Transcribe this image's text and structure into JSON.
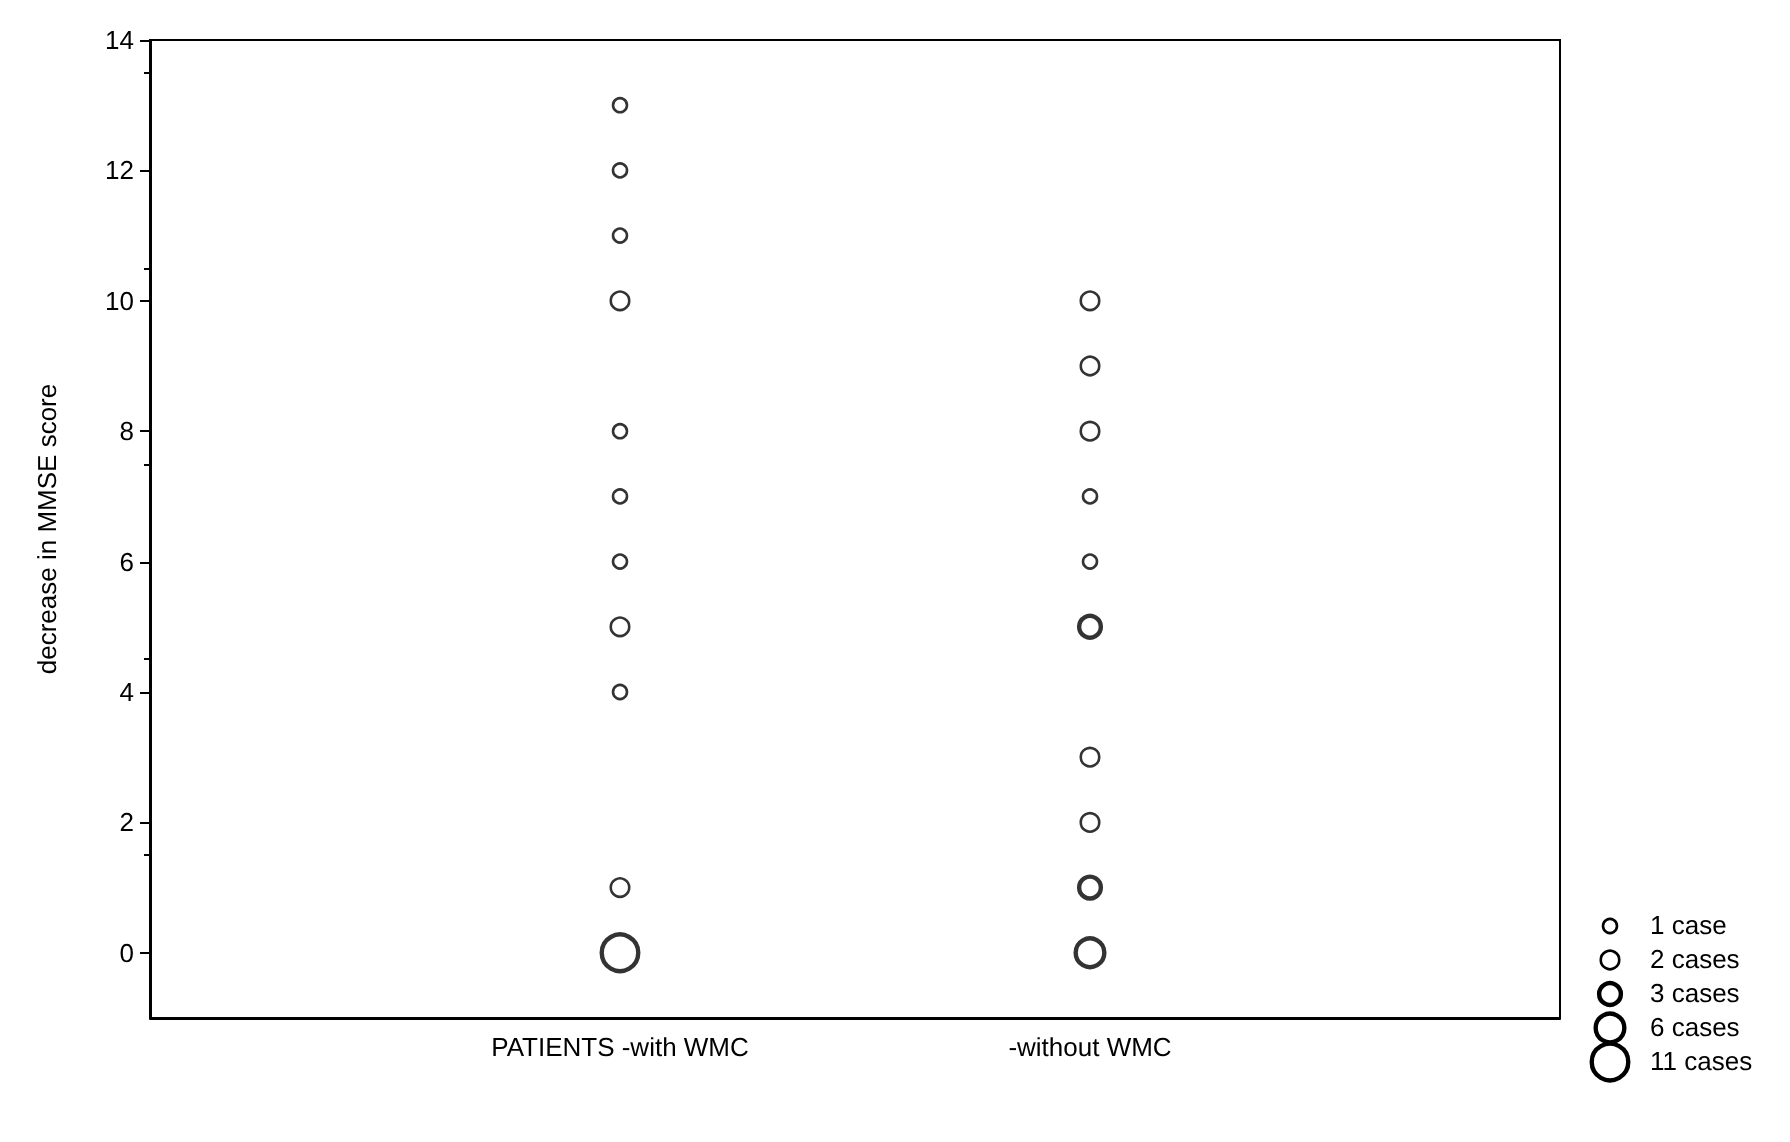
{
  "chart_data": {
    "type": "bubble",
    "ylabel": "decrease in MMSE score",
    "categories": [
      "PATIENTS -with WMC",
      "-without WMC"
    ],
    "series": [
      {
        "color": "#000000",
        "x": [
          "PATIENTS -with WMC",
          "PATIENTS -with WMC",
          "PATIENTS -with WMC",
          "PATIENTS -with WMC",
          "PATIENTS -with WMC",
          "PATIENTS -with WMC",
          "PATIENTS -with WMC",
          "PATIENTS -with WMC",
          "PATIENTS -with WMC",
          "PATIENTS -with WMC",
          "PATIENTS -with WMC",
          "-without WMC",
          "-without WMC",
          "-without WMC",
          "-without WMC",
          "-without WMC",
          "-without WMC",
          "-without WMC",
          "-without WMC",
          "-without WMC",
          "-without WMC"
        ],
        "values": [
          13,
          12,
          11,
          10,
          8,
          7,
          6,
          5,
          4,
          1,
          0,
          10,
          9,
          8,
          7,
          6,
          5,
          3,
          2,
          1,
          0
        ],
        "sizes": [
          1,
          1,
          1,
          2,
          1,
          1,
          1,
          2,
          1,
          2,
          11,
          2,
          2,
          2,
          1,
          1,
          3,
          2,
          2,
          3,
          6
        ]
      }
    ],
    "size_legend": [
      {
        "value": 1,
        "label": "1 case"
      },
      {
        "value": 2,
        "label": "2 cases"
      },
      {
        "value": 3,
        "label": "3 cases"
      },
      {
        "value": 6,
        "label": "6 cases"
      },
      {
        "value": 11,
        "label": "11 cases"
      }
    ],
    "ylim": [
      -1,
      14
    ],
    "yticks": [
      0,
      2,
      4,
      6,
      8,
      10,
      12,
      14
    ],
    "marker": "circle"
  }
}
